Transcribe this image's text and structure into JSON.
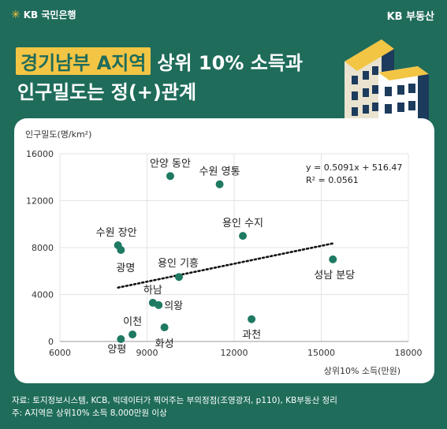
{
  "brand": {
    "left": "KB 국민은행",
    "right": "KB 부동산"
  },
  "title": {
    "highlight": "경기남부 A지역",
    "line1_rest": "상위 10% 소득과",
    "line2": "인구밀도는 정(+)관계"
  },
  "colors": {
    "background": "#1f6c5b",
    "highlight": "#f3c545",
    "point": "#1f7a63",
    "panel": "#ffffff",
    "text": "#222222"
  },
  "chart_data": {
    "type": "scatter",
    "ylabel": "인구밀도(명/km²)",
    "xlabel": "상위10% 소득(만원)",
    "xlim": [
      6000,
      18000
    ],
    "ylim": [
      0,
      16000
    ],
    "xticks": [
      6000,
      9000,
      12000,
      15000,
      18000
    ],
    "yticks": [
      0,
      4000,
      8000,
      12000,
      16000
    ],
    "grid": true,
    "points": [
      {
        "name": "안양 동안",
        "x": 9800,
        "y": 14100
      },
      {
        "name": "수원 영통",
        "x": 11500,
        "y": 13400
      },
      {
        "name": "수원 장안",
        "x": 8000,
        "y": 8200
      },
      {
        "name": "광명",
        "x": 8100,
        "y": 7800
      },
      {
        "name": "용인 수지",
        "x": 12300,
        "y": 9000
      },
      {
        "name": "용인 기흥",
        "x": 10100,
        "y": 5500
      },
      {
        "name": "성남 분당",
        "x": 15400,
        "y": 7000
      },
      {
        "name": "하남",
        "x": 9200,
        "y": 3300
      },
      {
        "name": "의왕",
        "x": 9400,
        "y": 3100
      },
      {
        "name": "이천",
        "x": 8500,
        "y": 600
      },
      {
        "name": "양평",
        "x": 8100,
        "y": 200
      },
      {
        "name": "화성",
        "x": 9600,
        "y": 1200
      },
      {
        "name": "과천",
        "x": 12600,
        "y": 1900
      }
    ],
    "trendline": {
      "x": [
        8000,
        15400
      ]
    },
    "equation": "y = 0.5091x + 516.47",
    "r2": "R² = 0.0561"
  },
  "footer": {
    "source": "자료: 토지정보시스템, KCB, 빅데이터가 찍어주는 부의정점(조영광저, p110), KB부동산 정리",
    "note": "주: A지역은 상위10% 소득 8,000만원 이상"
  }
}
